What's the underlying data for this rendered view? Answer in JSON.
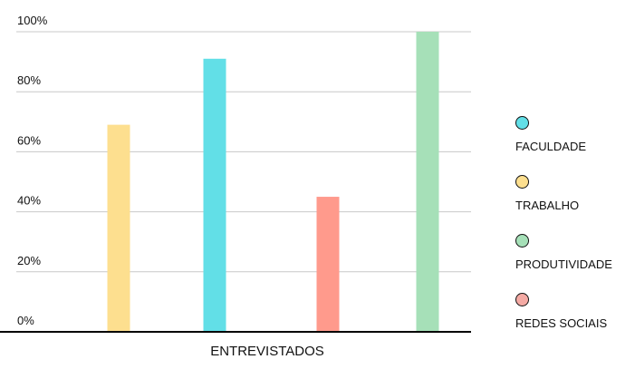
{
  "chart_data": {
    "type": "bar",
    "title": "",
    "xlabel": "ENTREVISTADOS",
    "ylabel": "",
    "ylim": [
      0,
      100
    ],
    "yticks": [
      "0%",
      "20%",
      "40%",
      "60%",
      "80%",
      "100%"
    ],
    "grid": true,
    "legend_position": "right",
    "series": [
      {
        "name": "TRABALHO",
        "value": 69,
        "color": "#fddf8f"
      },
      {
        "name": "FACULDADE",
        "value": 91,
        "color": "#62dfe7"
      },
      {
        "name": "REDES SOCIAIS",
        "value": 45,
        "color": "#ff9a8c"
      },
      {
        "name": "PRODUTIVIDADE",
        "value": 100,
        "color": "#a6e0b8"
      }
    ],
    "legend": [
      {
        "label": "FACULDADE",
        "color": "#62dfe7"
      },
      {
        "label": "TRABALHO",
        "color": "#fddf8f"
      },
      {
        "label": "PRODUTIVIDADE",
        "color": "#a6e0b8"
      },
      {
        "label": "REDES SOCIAIS",
        "color": "#f4aaa4"
      }
    ]
  }
}
